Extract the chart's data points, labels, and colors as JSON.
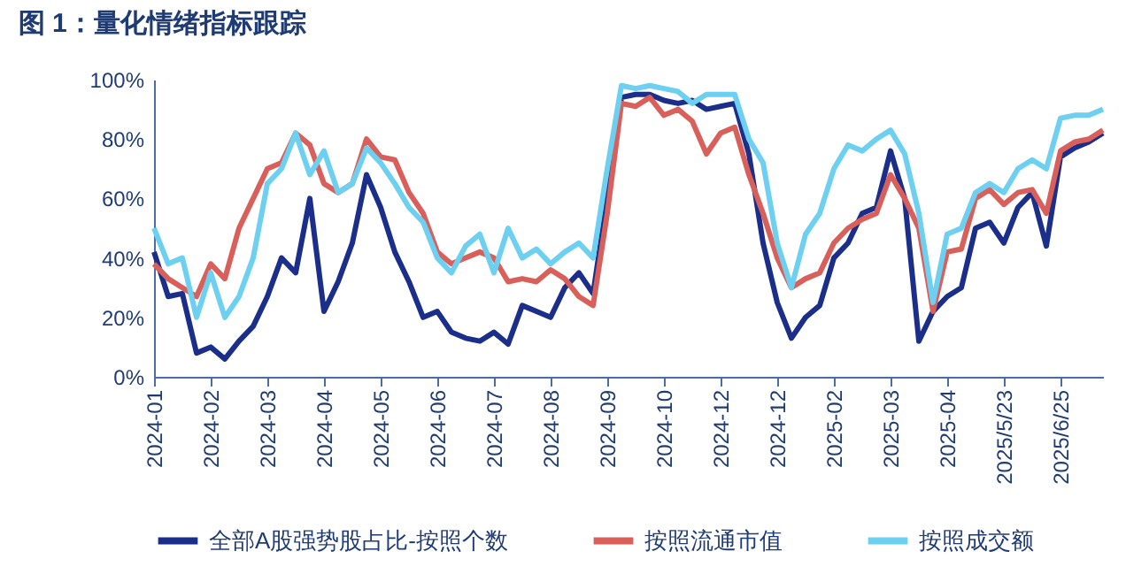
{
  "chart_data": {
    "type": "line",
    "title": "图 1：量化情绪指标跟踪",
    "categories": [
      "2024-01",
      null,
      null,
      null,
      "2024-02",
      null,
      null,
      null,
      "2024-03",
      null,
      null,
      null,
      "2024-04",
      null,
      null,
      null,
      "2024-05",
      null,
      null,
      null,
      "2024-06",
      null,
      null,
      null,
      "2024-07",
      null,
      null,
      null,
      "2024-08",
      null,
      null,
      null,
      "2024-09",
      null,
      null,
      null,
      "2024-10",
      null,
      null,
      null,
      "2024-12",
      null,
      null,
      null,
      "2024-12",
      null,
      null,
      null,
      "2025-02",
      null,
      null,
      null,
      "2025-03",
      null,
      null,
      null,
      "2025-04",
      null,
      null,
      null,
      "2025/5/23",
      null,
      null,
      null,
      "2025/6/25",
      null,
      null,
      null
    ],
    "series": [
      {
        "name": "全部A股强势股占比-按照个数",
        "color": "#1b2f8a",
        "values": [
          42,
          27,
          28,
          8,
          10,
          6,
          12,
          17,
          27,
          40,
          35,
          60,
          22,
          32,
          45,
          68,
          57,
          42,
          32,
          20,
          22,
          15,
          13,
          12,
          15,
          11,
          24,
          22,
          20,
          30,
          35,
          28,
          60,
          94,
          95,
          95,
          93,
          92,
          93,
          90,
          91,
          92,
          75,
          45,
          25,
          13,
          20,
          24,
          40,
          45,
          55,
          57,
          76,
          60,
          12,
          22,
          27,
          30,
          50,
          52,
          45,
          57,
          62,
          44,
          74,
          77,
          79,
          82
        ]
      },
      {
        "name": "按照流通市值",
        "color": "#d9605a",
        "values": [
          38,
          33,
          30,
          27,
          38,
          33,
          50,
          60,
          70,
          72,
          82,
          78,
          65,
          62,
          65,
          80,
          74,
          73,
          62,
          55,
          42,
          38,
          40,
          42,
          40,
          32,
          33,
          32,
          36,
          33,
          27,
          24,
          55,
          92,
          91,
          94,
          88,
          90,
          86,
          75,
          82,
          84,
          68,
          55,
          40,
          30,
          33,
          35,
          45,
          50,
          53,
          55,
          68,
          60,
          50,
          22,
          42,
          43,
          60,
          63,
          58,
          62,
          63,
          55,
          76,
          79,
          80,
          83
        ]
      },
      {
        "name": "按照成交额",
        "color": "#6dd0f0",
        "values": [
          50,
          38,
          40,
          20,
          35,
          20,
          27,
          40,
          65,
          70,
          82,
          68,
          76,
          62,
          65,
          77,
          72,
          65,
          57,
          52,
          40,
          35,
          44,
          48,
          35,
          50,
          40,
          43,
          38,
          42,
          45,
          40,
          70,
          98,
          97,
          98,
          97,
          96,
          92,
          95,
          95,
          95,
          80,
          72,
          45,
          30,
          48,
          55,
          70,
          78,
          76,
          80,
          83,
          75,
          55,
          25,
          48,
          50,
          62,
          65,
          62,
          70,
          73,
          70,
          87,
          88,
          88,
          90
        ]
      }
    ],
    "ylim": [
      0,
      100
    ],
    "yticks": [
      {
        "value": 0,
        "label": "0%"
      },
      {
        "value": 20,
        "label": "20%"
      },
      {
        "value": 40,
        "label": "40%"
      },
      {
        "value": 60,
        "label": "60%"
      },
      {
        "value": 80,
        "label": "80%"
      },
      {
        "value": 100,
        "label": "100%"
      }
    ],
    "legend": "bottom"
  }
}
